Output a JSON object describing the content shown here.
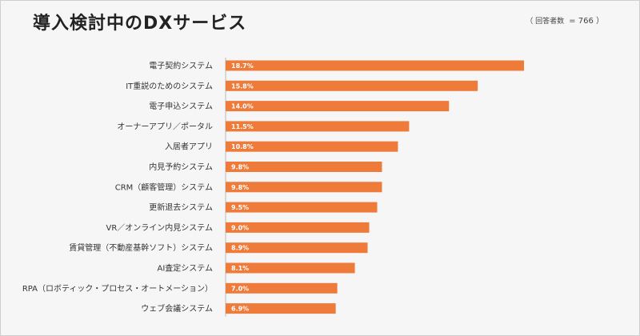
{
  "header": {
    "title": "導入検討中のDXサービス",
    "respondents_label": "（ 回答者数",
    "respondents_value": "= 766 ）"
  },
  "colors": {
    "bar": "#ef7b3a",
    "background": "#f6f6f6",
    "axis": "#bbbbbb"
  },
  "chart_data": {
    "type": "bar",
    "orientation": "horizontal",
    "title": "導入検討中のDXサービス",
    "xlim": [
      0,
      21.5
    ],
    "grid": false,
    "legend": "none",
    "categories": [
      "電子契約システム",
      "IT重説のためのシステム",
      "電子申込システム",
      "オーナーアプリ／ポータル",
      "入居者アプリ",
      "内見予約システム",
      "CRM（顧客管理）システム",
      "更新退去システム",
      "VR／オンライン内見システム",
      "賃貸管理（不動産基幹ソフト）システム",
      "AI査定システム",
      "RPA（ロボティック・プロセス・オートメーション）",
      "ウェブ会議システム"
    ],
    "values": [
      18.7,
      15.8,
      14.0,
      11.5,
      10.8,
      9.8,
      9.8,
      9.5,
      9.0,
      8.9,
      8.1,
      7.0,
      6.9
    ],
    "value_labels": [
      "18.7%",
      "15.8%",
      "14.0%",
      "11.5%",
      "10.8%",
      "9.8%",
      "9.8%",
      "9.5%",
      "9.0%",
      "8.9%",
      "8.1%",
      "7.0%",
      "6.9%"
    ]
  }
}
